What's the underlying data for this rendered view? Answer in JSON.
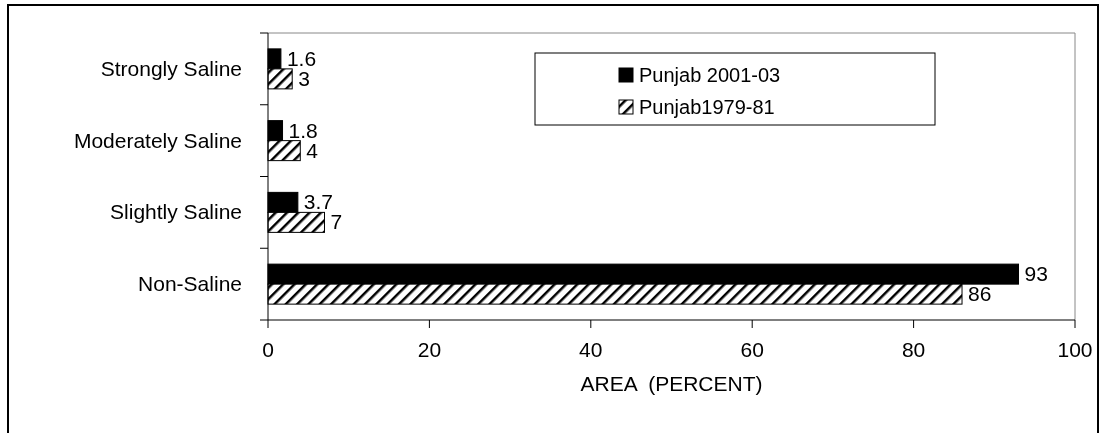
{
  "chart_data": {
    "type": "bar",
    "orientation": "horizontal",
    "xlabel": "AREA  (PERCENT)",
    "categories": [
      "Strongly Saline",
      "Moderately Saline",
      "Slightly Saline",
      "Non-Saline"
    ],
    "series": [
      {
        "name": "Punjab 2001-03",
        "color": "#000000",
        "values": [
          1.6,
          1.8,
          3.7,
          93
        ]
      },
      {
        "name": "Punjab1979-81",
        "color": "#000000",
        "values": [
          3,
          4,
          7,
          86
        ]
      }
    ],
    "xlim": [
      0,
      100
    ],
    "xticks": [
      0,
      20,
      40,
      60,
      80,
      100
    ],
    "data_labels": true,
    "legend": "top right",
    "grid": false
  }
}
